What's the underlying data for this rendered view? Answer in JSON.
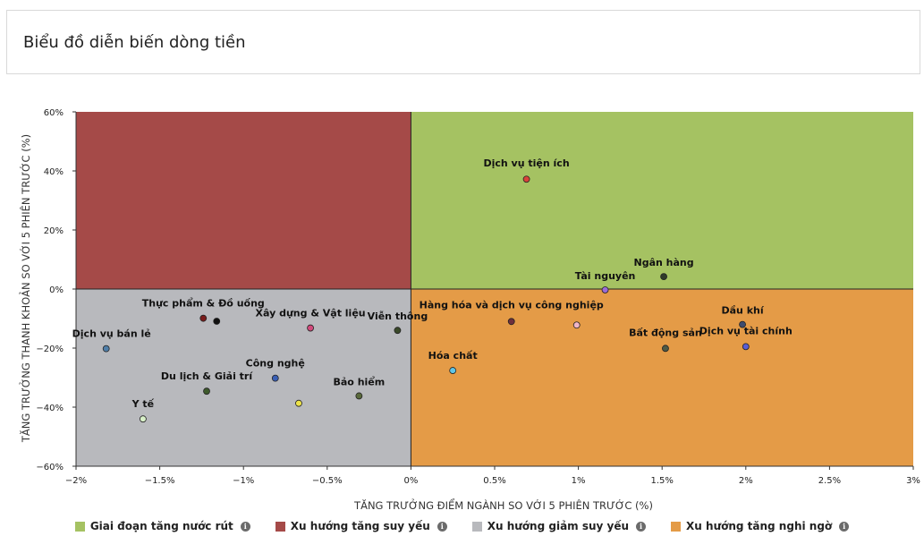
{
  "page": {
    "title": "Biểu đồ diễn biến dòng tiền"
  },
  "chart_data": {
    "type": "scatter",
    "xlabel": "TĂNG TRƯỞNG ĐIỂM NGÀNH SO VỚI 5 PHIÊN TRƯỚC (%)",
    "ylabel": "TĂNG TRƯỞNG THANH KHOẢN SO VỚI 5 PHIÊN TRƯỚC (%)",
    "xlim": [
      -2,
      3
    ],
    "ylim": [
      -60,
      60
    ],
    "x_ticks": [
      {
        "value": -2,
        "label": "−2%"
      },
      {
        "value": -1.5,
        "label": "−1.5%"
      },
      {
        "value": -1,
        "label": "−1%"
      },
      {
        "value": -0.5,
        "label": "−0.5%"
      },
      {
        "value": 0,
        "label": "0%"
      },
      {
        "value": 0.5,
        "label": "0.5%"
      },
      {
        "value": 1,
        "label": "1%"
      },
      {
        "value": 1.5,
        "label": "1.5%"
      },
      {
        "value": 2,
        "label": "2%"
      },
      {
        "value": 2.5,
        "label": "2.5%"
      },
      {
        "value": 3,
        "label": "3%"
      }
    ],
    "y_ticks": [
      {
        "value": 60,
        "label": "60%"
      },
      {
        "value": 40,
        "label": "40%"
      },
      {
        "value": 20,
        "label": "20%"
      },
      {
        "value": 0,
        "label": "0%"
      },
      {
        "value": -20,
        "label": "−20%"
      },
      {
        "value": -40,
        "label": "−40%"
      },
      {
        "value": -60,
        "label": "−60%"
      }
    ],
    "quadrants": [
      {
        "name": "Giai đoạn tăng nước rút",
        "color": "#a5c262",
        "x_range": [
          0,
          3
        ],
        "y_range": [
          0,
          60
        ]
      },
      {
        "name": "Xu hướng tăng suy yếu",
        "color": "#a54a48",
        "x_range": [
          -2,
          0
        ],
        "y_range": [
          0,
          60
        ]
      },
      {
        "name": "Xu hướng giảm suy yếu",
        "color": "#b8b9bd",
        "x_range": [
          -2,
          0
        ],
        "y_range": [
          -60,
          0
        ]
      },
      {
        "name": "Xu hướng tăng nghi ngờ",
        "color": "#e49b47",
        "x_range": [
          0,
          3
        ],
        "y_range": [
          -60,
          0
        ]
      }
    ],
    "points": [
      {
        "name": "Dịch vụ tiện ích",
        "x": 0.69,
        "y": 37.2,
        "color": "#d9433a",
        "label_dx": 0,
        "label_dy": -14
      },
      {
        "name": "Ngân hàng",
        "x": 1.51,
        "y": 4.2,
        "color": "#2f3a2a",
        "label_dx": 0,
        "label_dy": -12
      },
      {
        "name": "Tài nguyên",
        "x": 1.16,
        "y": -0.3,
        "color": "#9a6bd6",
        "label_dx": 0,
        "label_dy": -12
      },
      {
        "name": "Dầu khí",
        "x": 1.98,
        "y": -12.0,
        "color": "#3d4b6e",
        "label_dx": 0,
        "label_dy": -12
      },
      {
        "name": "Hàng hóa và dịch vụ công nghiệp",
        "x": 0.6,
        "y": -11.0,
        "color": "#6e2f3d",
        "label_dx": 0,
        "label_dy": -15
      },
      {
        "name": "Bất động sản",
        "x": 1.52,
        "y": -20.1,
        "color": "#4e5a46",
        "label_dx": 0,
        "label_dy": -14
      },
      {
        "name": "Dịch vụ tài chính",
        "x": 2.0,
        "y": -19.5,
        "color": "#5b5ed4",
        "label_dx": 0,
        "label_dy": -14
      },
      {
        "name": "",
        "x": 0.99,
        "y": -12.2,
        "color": "#f0b6c8",
        "label_dx": 0,
        "label_dy": -12
      },
      {
        "name": "Hóa chất",
        "x": 0.25,
        "y": -27.6,
        "color": "#5fc6e6",
        "label_dx": 0,
        "label_dy": -13
      },
      {
        "name": "Dịch vụ bán lẻ",
        "x": -1.82,
        "y": -20.2,
        "color": "#4f7ea8",
        "label_dx": 6,
        "label_dy": -13
      },
      {
        "name": "Thực phẩm & Đồ uống",
        "x": -1.24,
        "y": -9.9,
        "color": "#7a1c1c",
        "label_dx": 0,
        "label_dy": -13
      },
      {
        "name": "",
        "x": -1.16,
        "y": -10.9,
        "color": "#111111",
        "label_dx": 0,
        "label_dy": -12
      },
      {
        "name": "Xây dựng & Vật liệu",
        "x": -0.6,
        "y": -13.2,
        "color": "#d14a7c",
        "label_dx": 0,
        "label_dy": -13
      },
      {
        "name": "Viễn thông",
        "x": -0.08,
        "y": -14.0,
        "color": "#3a4a2a",
        "label_dx": 0,
        "label_dy": -12
      },
      {
        "name": "Công nghệ",
        "x": -0.81,
        "y": -30.2,
        "color": "#3a5fb4",
        "label_dx": 0,
        "label_dy": -13
      },
      {
        "name": "Du lịch & Giải trí",
        "x": -1.22,
        "y": -34.6,
        "color": "#3e5a2c",
        "label_dx": 0,
        "label_dy": -13
      },
      {
        "name": "Bảo hiểm",
        "x": -0.31,
        "y": -36.2,
        "color": "#5a6a3c",
        "label_dx": 0,
        "label_dy": -12
      },
      {
        "name": "",
        "x": -0.67,
        "y": -38.7,
        "color": "#ece24a",
        "label_dx": 0,
        "label_dy": -12
      },
      {
        "name": "Y tế",
        "x": -1.6,
        "y": -44.0,
        "color": "#d8f0c8",
        "label_dx": 0,
        "label_dy": -13
      }
    ],
    "legend": [
      {
        "label": "Giai đoạn tăng nước rút",
        "color": "#a5c262"
      },
      {
        "label": "Xu hướng tăng suy yếu",
        "color": "#a54a48"
      },
      {
        "label": "Xu hướng giảm suy yếu",
        "color": "#b8b9bd"
      },
      {
        "label": "Xu hướng tăng nghi ngờ",
        "color": "#e49b47"
      }
    ]
  }
}
